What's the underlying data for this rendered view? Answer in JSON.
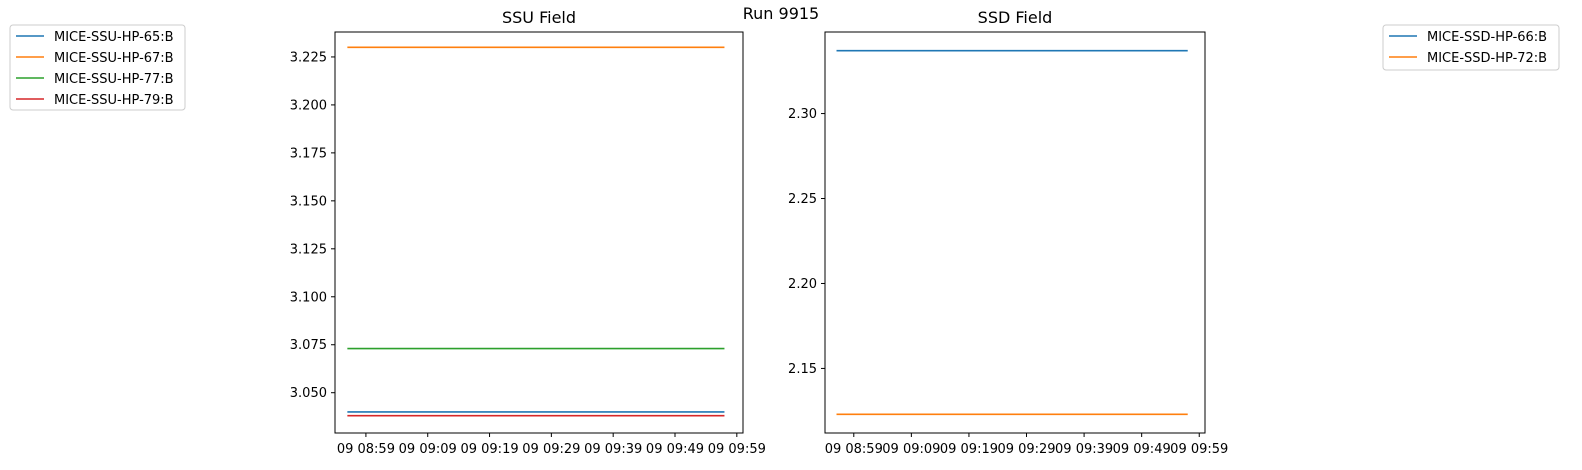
{
  "suptitle": "Run 9915",
  "chart_data": [
    {
      "type": "line",
      "title": "SSU Field",
      "x_ticks": [
        "09 08:59",
        "09 09:09",
        "09 09:19",
        "09 09:29",
        "09 09:39",
        "09 09:49",
        "09 09:59"
      ],
      "x_range": [
        "09 08:54",
        "09 10:00"
      ],
      "x_start": "09 08:56",
      "x_end": "09 09:57",
      "ylim": [
        3.029,
        3.238
      ],
      "y_ticks": [
        "3.050",
        "3.075",
        "3.100",
        "3.125",
        "3.150",
        "3.175",
        "3.200",
        "3.225"
      ],
      "legend_position": "outside-left",
      "series": [
        {
          "name": "MICE-SSU-HP-65:B",
          "color": "#1f77b4",
          "values": [
            3.04,
            3.04
          ]
        },
        {
          "name": "MICE-SSU-HP-67:B",
          "color": "#ff7f0e",
          "values": [
            3.23,
            3.23
          ]
        },
        {
          "name": "MICE-SSU-HP-77:B",
          "color": "#2ca02c",
          "values": [
            3.073,
            3.073
          ]
        },
        {
          "name": "MICE-SSU-HP-79:B",
          "color": "#d62728",
          "values": [
            3.038,
            3.038
          ]
        }
      ]
    },
    {
      "type": "line",
      "title": "SSD Field",
      "x_ticks": [
        "09 08:59",
        "09 09:09",
        "09 09:19",
        "09 09:29",
        "09 09:39",
        "09 09:49",
        "09 09:59"
      ],
      "x_range": [
        "09 08:54",
        "09 10:00"
      ],
      "x_start": "09 08:56",
      "x_end": "09 09:57",
      "ylim": [
        2.112,
        2.348
      ],
      "y_ticks": [
        "2.15",
        "2.20",
        "2.25",
        "2.30"
      ],
      "legend_position": "outside-right",
      "series": [
        {
          "name": "MICE-SSD-HP-66:B",
          "color": "#1f77b4",
          "values": [
            2.337,
            2.337
          ]
        },
        {
          "name": "MICE-SSD-HP-72:B",
          "color": "#ff7f0e",
          "values": [
            2.123,
            2.123
          ]
        }
      ]
    }
  ]
}
